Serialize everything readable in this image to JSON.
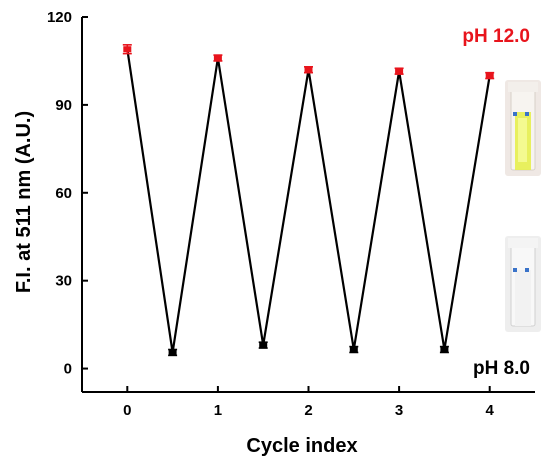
{
  "chart_data": {
    "type": "line",
    "xlabel": "Cycle index",
    "ylabel": "F.I. at 511 nm (A.U.)",
    "xlim": [
      -0.5,
      4.5
    ],
    "ylim": [
      -8,
      120
    ],
    "x_ticks": [
      0,
      1,
      2,
      3,
      4
    ],
    "y_ticks": [
      0,
      30,
      60,
      90,
      120
    ],
    "grid": false,
    "series": [
      {
        "x": [
          0,
          0.5,
          1,
          1.5,
          2,
          2.5,
          3,
          3.5,
          4
        ],
        "y": [
          109,
          5.5,
          106,
          8,
          102,
          6.5,
          101.5,
          6.5,
          100
        ]
      }
    ],
    "error_bars": [
      1.5,
      1.0,
      1.0,
      1.0,
      1.0,
      1.0,
      1.0,
      1.0,
      1.0
    ],
    "high_points": {
      "x": [
        0,
        1,
        2,
        3,
        4
      ],
      "y": [
        109,
        106,
        102,
        101.5,
        100
      ],
      "color": "#e8141c"
    },
    "low_points": {
      "x": [
        0.5,
        1.5,
        2.5,
        3.5
      ],
      "y": [
        5.5,
        8,
        6.5,
        6.5
      ],
      "color": "#000000"
    },
    "annotations": [
      {
        "text": "pH 12.0",
        "color": "#e8141c",
        "position": "top-right"
      },
      {
        "text": "pH 8.0",
        "color": "#000000",
        "position": "bottom-right"
      }
    ],
    "line_color": "#000000"
  }
}
